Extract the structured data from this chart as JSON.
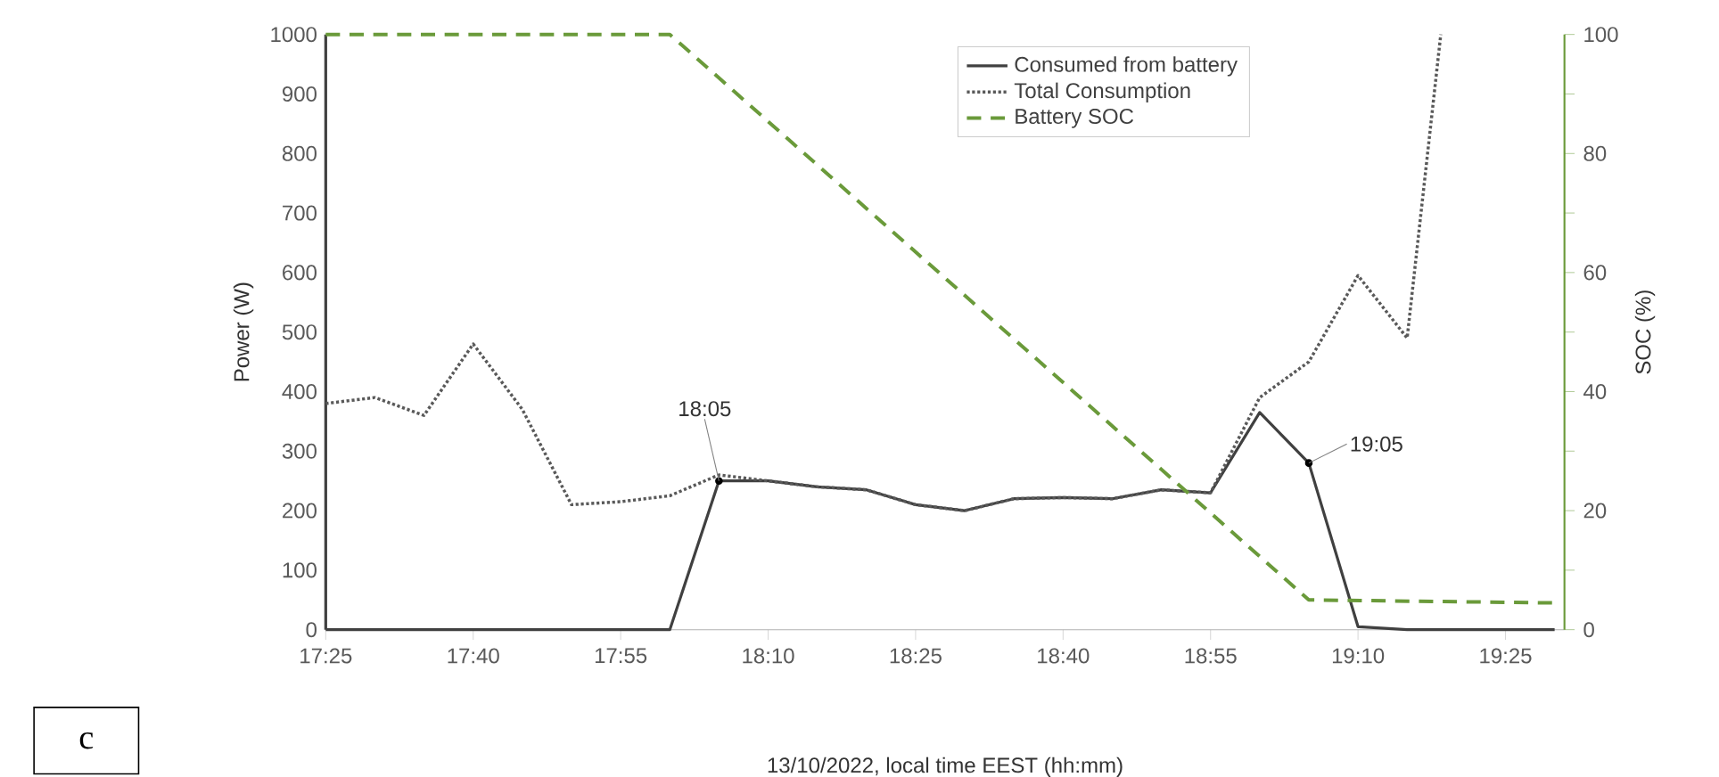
{
  "chart_data": {
    "type": "line",
    "xlabel": "13/10/2022, local time EEST (hh:mm)",
    "ylabel": "Power (W)",
    "y2label": "SOC (%)",
    "xlim": [
      17.4167,
      19.5167
    ],
    "xticks": [
      {
        "value": 17.4167,
        "label": "17:25"
      },
      {
        "value": 17.6667,
        "label": "17:40"
      },
      {
        "value": 17.9167,
        "label": "17:55"
      },
      {
        "value": 18.1667,
        "label": "18:10"
      },
      {
        "value": 18.4167,
        "label": "18:25"
      },
      {
        "value": 18.6667,
        "label": "18:40"
      },
      {
        "value": 18.9167,
        "label": "18:55"
      },
      {
        "value": 19.1667,
        "label": "19:10"
      },
      {
        "value": 19.4167,
        "label": "19:25"
      }
    ],
    "ylim": [
      0,
      1000
    ],
    "yticks": [
      0,
      100,
      200,
      300,
      400,
      500,
      600,
      700,
      800,
      900,
      1000
    ],
    "y2lim": [
      0,
      100
    ],
    "y2ticks": [
      0,
      {
        "value": 10,
        "label": null
      },
      20,
      {
        "value": 30,
        "label": null
      },
      40,
      {
        "value": 50,
        "label": null
      },
      60,
      {
        "value": 70,
        "label": null
      },
      80,
      {
        "value": 90,
        "label": null
      },
      100
    ],
    "legend": "top right",
    "series": [
      {
        "name": "Consumed from battery",
        "color": "#404040",
        "line_style": "solid",
        "x": [
          17.4167,
          17.5,
          17.5833,
          17.6667,
          17.75,
          17.8333,
          17.9167,
          18.0,
          18.0833,
          18.1667,
          18.25,
          18.3333,
          18.4167,
          18.5,
          18.5833,
          18.6667,
          18.75,
          18.8333,
          18.9167,
          19.0,
          19.0833,
          19.1667,
          19.25,
          19.3333,
          19.4167,
          19.5
        ],
        "values": [
          0,
          0,
          0,
          0,
          0,
          0,
          0,
          0,
          250,
          250,
          240,
          235,
          210,
          200,
          220,
          222,
          220,
          235,
          230,
          365,
          280,
          5,
          0,
          0,
          0,
          0
        ]
      },
      {
        "name": "Total Consumption",
        "color": "#595959",
        "line_style": "dotted",
        "x": [
          17.4167,
          17.5,
          17.5833,
          17.6667,
          17.75,
          17.8333,
          17.9167,
          18.0,
          18.0833,
          18.1667,
          18.25,
          18.3333,
          18.4167,
          18.5,
          18.5833,
          18.6667,
          18.75,
          18.8333,
          18.9167,
          19.0,
          19.0833,
          19.1667,
          19.25,
          19.307
        ],
        "values": [
          380,
          390,
          360,
          480,
          370,
          210,
          215,
          225,
          260,
          250,
          240,
          235,
          210,
          200,
          220,
          222,
          220,
          235,
          230,
          390,
          450,
          595,
          490,
          1000
        ]
      },
      {
        "name": "Battery SOC",
        "color": "#6a9a3a",
        "line_style": "dashed",
        "axis": "y2",
        "x": [
          17.4167,
          18.0,
          19.0833,
          19.5
        ],
        "values": [
          100,
          100,
          5,
          4.5
        ]
      }
    ],
    "annotations": [
      {
        "text": "18:05",
        "x": 18.0833,
        "y": 250
      },
      {
        "text": "19:05",
        "x": 19.0833,
        "y": 280
      },
      "c"
    ]
  }
}
